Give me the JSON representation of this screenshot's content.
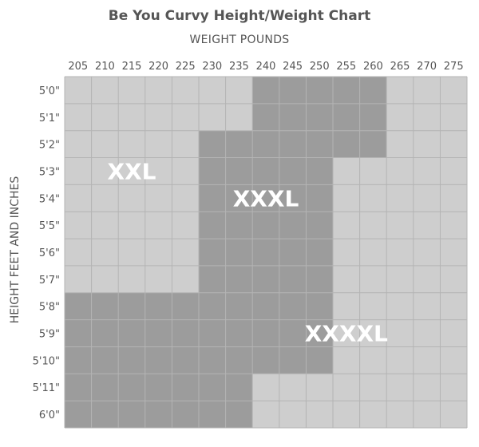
{
  "chart_data": {
    "type": "heatmap",
    "title": "Be You Curvy Height/Weight Chart",
    "xlabel": "WEIGHT POUNDS",
    "ylabel": "HEIGHT FEET AND INCHES",
    "x_ticks": [
      "205",
      "210",
      "215",
      "220",
      "225",
      "230",
      "235",
      "240",
      "245",
      "250",
      "255",
      "260",
      "265",
      "270",
      "275"
    ],
    "y_ticks": [
      "5'0\"",
      "5'1\"",
      "5'2\"",
      "5'3\"",
      "5'4\"",
      "5'5\"",
      "5'6\"",
      "5'7\"",
      "5'8\"",
      "5'9\"",
      "5'10\"",
      "5'11\"",
      "6'0\""
    ],
    "sizes": [
      "XXL",
      "XXXL",
      "XXXXL"
    ],
    "colors": {
      "XXL": "#cecece",
      "XXXL": "#9c9c9c",
      "XXXXL": "#cecece",
      "grid": "#b4b4b4",
      "text": "#555555"
    },
    "grid": [
      [
        "XXL",
        "XXL",
        "XXL",
        "XXL",
        "XXL",
        "XXL",
        "XXL",
        "XXXL",
        "XXXL",
        "XXXL",
        "XXXL",
        "XXXL",
        "XXXXL",
        "XXXXL",
        "XXXXL"
      ],
      [
        "XXL",
        "XXL",
        "XXL",
        "XXL",
        "XXL",
        "XXL",
        "XXL",
        "XXXL",
        "XXXL",
        "XXXL",
        "XXXL",
        "XXXL",
        "XXXXL",
        "XXXXL",
        "XXXXL"
      ],
      [
        "XXL",
        "XXL",
        "XXL",
        "XXL",
        "XXL",
        "XXXL",
        "XXXL",
        "XXXL",
        "XXXL",
        "XXXL",
        "XXXL",
        "XXXL",
        "XXXXL",
        "XXXXL",
        "XXXXL"
      ],
      [
        "XXL",
        "XXL",
        "XXL",
        "XXL",
        "XXL",
        "XXXL",
        "XXXL",
        "XXXL",
        "XXXL",
        "XXXL",
        "XXXXL",
        "XXXXL",
        "XXXXL",
        "XXXXL",
        "XXXXL"
      ],
      [
        "XXL",
        "XXL",
        "XXL",
        "XXL",
        "XXL",
        "XXXL",
        "XXXL",
        "XXXL",
        "XXXL",
        "XXXL",
        "XXXXL",
        "XXXXL",
        "XXXXL",
        "XXXXL",
        "XXXXL"
      ],
      [
        "XXL",
        "XXL",
        "XXL",
        "XXL",
        "XXL",
        "XXXL",
        "XXXL",
        "XXXL",
        "XXXL",
        "XXXL",
        "XXXXL",
        "XXXXL",
        "XXXXL",
        "XXXXL",
        "XXXXL"
      ],
      [
        "XXL",
        "XXL",
        "XXL",
        "XXL",
        "XXL",
        "XXXL",
        "XXXL",
        "XXXL",
        "XXXL",
        "XXXL",
        "XXXXL",
        "XXXXL",
        "XXXXL",
        "XXXXL",
        "XXXXL"
      ],
      [
        "XXL",
        "XXL",
        "XXL",
        "XXL",
        "XXL",
        "XXXL",
        "XXXL",
        "XXXL",
        "XXXL",
        "XXXL",
        "XXXXL",
        "XXXXL",
        "XXXXL",
        "XXXXL",
        "XXXXL"
      ],
      [
        "XXXL",
        "XXXL",
        "XXXL",
        "XXXL",
        "XXXL",
        "XXXL",
        "XXXL",
        "XXXL",
        "XXXL",
        "XXXL",
        "XXXXL",
        "XXXXL",
        "XXXXL",
        "XXXXL",
        "XXXXL"
      ],
      [
        "XXXL",
        "XXXL",
        "XXXL",
        "XXXL",
        "XXXL",
        "XXXL",
        "XXXL",
        "XXXL",
        "XXXL",
        "XXXL",
        "XXXXL",
        "XXXXL",
        "XXXXL",
        "XXXXL",
        "XXXXL"
      ],
      [
        "XXXL",
        "XXXL",
        "XXXL",
        "XXXL",
        "XXXL",
        "XXXL",
        "XXXL",
        "XXXL",
        "XXXL",
        "XXXL",
        "XXXXL",
        "XXXXL",
        "XXXXL",
        "XXXXL",
        "XXXXL"
      ],
      [
        "XXXL",
        "XXXL",
        "XXXL",
        "XXXL",
        "XXXL",
        "XXXL",
        "XXXL",
        "XXXXL",
        "XXXXL",
        "XXXXL",
        "XXXXL",
        "XXXXL",
        "XXXXL",
        "XXXXL",
        "XXXXL"
      ],
      [
        "XXXL",
        "XXXL",
        "XXXL",
        "XXXL",
        "XXXL",
        "XXXL",
        "XXXL",
        "XXXXL",
        "XXXXL",
        "XXXXL",
        "XXXXL",
        "XXXXL",
        "XXXXL",
        "XXXXL",
        "XXXXL"
      ]
    ],
    "zone_labels": [
      {
        "text": "XXL",
        "x": "215",
        "y": "5'3\""
      },
      {
        "text": "XXXL",
        "x": "240",
        "y": "5'4\""
      },
      {
        "text": "XXXXL",
        "x": "255",
        "y": "5'9\""
      }
    ],
    "legend": "none"
  }
}
